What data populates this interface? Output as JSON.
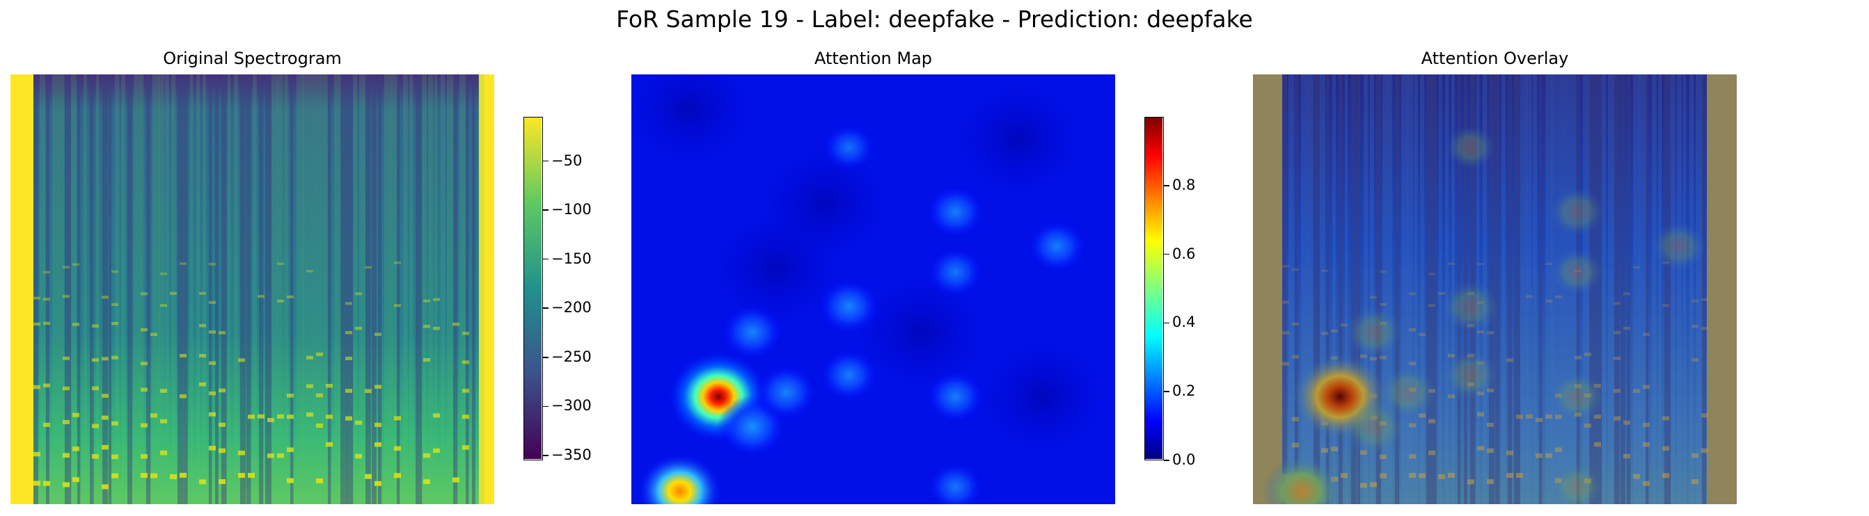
{
  "figure": {
    "title": "FoR Sample 19 - Label: deepfake - Prediction: deepfake"
  },
  "chart_data": [
    {
      "type": "heatmap",
      "title": "Original Spectrogram",
      "colormap": "viridis",
      "colorbar": {
        "range": [
          -355,
          -5
        ],
        "ticks": [
          -50,
          -100,
          -150,
          -200,
          -250,
          -300,
          -350
        ],
        "tick_labels": [
          "−50",
          "−100",
          "−150",
          "−200",
          "−250",
          "−300",
          "−350"
        ]
      }
    },
    {
      "type": "heatmap",
      "title": "Attention Map",
      "colormap": "jet",
      "colorbar": {
        "range": [
          0.0,
          1.0
        ],
        "ticks": [
          0.8,
          0.6,
          0.4,
          0.2,
          0.0
        ],
        "tick_labels": [
          "0.8",
          "0.6",
          "0.4",
          "0.2",
          "0.0"
        ]
      },
      "hotspots": [
        {
          "x": 0.18,
          "y": 0.75,
          "value": 1.0
        },
        {
          "x": 0.1,
          "y": 0.97,
          "value": 0.7
        },
        {
          "x": 0.25,
          "y": 0.82,
          "value": 0.45
        },
        {
          "x": 0.32,
          "y": 0.74,
          "value": 0.35
        },
        {
          "x": 0.25,
          "y": 0.6,
          "value": 0.35
        },
        {
          "x": 0.45,
          "y": 0.54,
          "value": 0.35
        },
        {
          "x": 0.45,
          "y": 0.7,
          "value": 0.3
        },
        {
          "x": 0.67,
          "y": 0.75,
          "value": 0.3
        },
        {
          "x": 0.67,
          "y": 0.32,
          "value": 0.3
        },
        {
          "x": 0.67,
          "y": 0.46,
          "value": 0.25
        },
        {
          "x": 0.88,
          "y": 0.4,
          "value": 0.3
        },
        {
          "x": 0.45,
          "y": 0.17,
          "value": 0.2
        },
        {
          "x": 0.67,
          "y": 0.96,
          "value": 0.25
        }
      ]
    },
    {
      "type": "heatmap",
      "title": "Attention Overlay",
      "colormap": "jet over viridis"
    }
  ]
}
